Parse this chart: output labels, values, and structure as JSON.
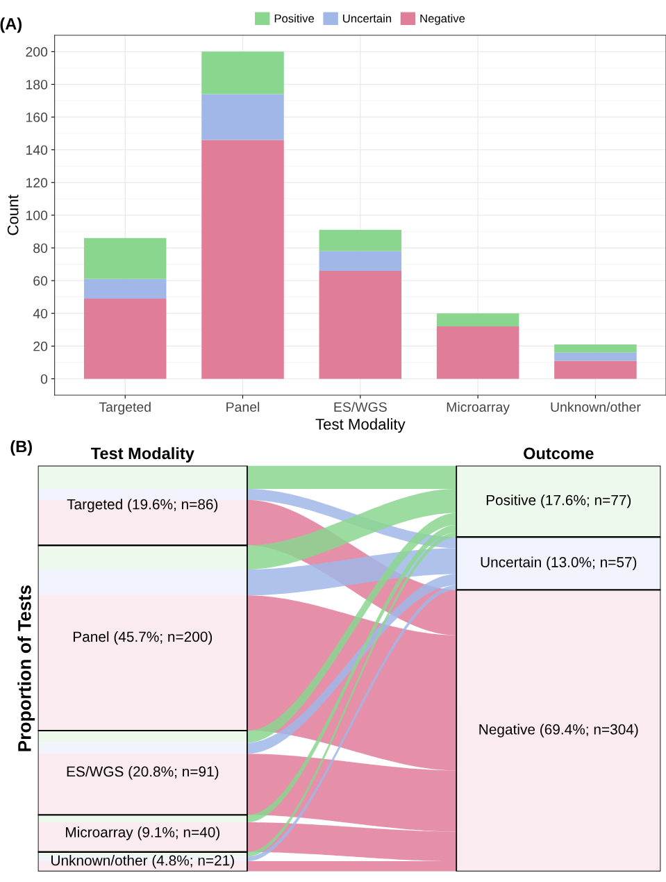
{
  "chart_data": [
    {
      "type": "bar",
      "title": "(A)",
      "xlabel": "Test Modality",
      "ylabel": "Count",
      "stacked": true,
      "grid": true,
      "legend": "top",
      "categories": [
        "Targeted",
        "Panel",
        "ES/WGS",
        "Microarray",
        "Unknown/other"
      ],
      "series": [
        {
          "name": "Negative",
          "color": "#e07d99",
          "values": [
            49,
            146,
            66,
            32,
            11
          ]
        },
        {
          "name": "Uncertain",
          "color": "#a0b7e8",
          "values": [
            12,
            28,
            12,
            0,
            5
          ]
        },
        {
          "name": "Positive",
          "color": "#8bd68f",
          "values": [
            25,
            26,
            13,
            8,
            5
          ]
        }
      ],
      "ylim": [
        -10,
        210
      ],
      "yticks": [
        0,
        20,
        40,
        60,
        80,
        100,
        120,
        140,
        160,
        180,
        200
      ]
    },
    {
      "type": "other",
      "title": "(B)",
      "ylabel": "Proportion of Tests",
      "annotations": [
        "Test Modality",
        "Outcome",
        "Positive (17.6%; n=77)",
        "Uncertain (13.0%; n=57)",
        "Negative (69.4%; n=304)"
      ],
      "categories": [
        "Targeted (19.6%; n=86)",
        "Panel (45.7%; n=200)",
        "ES/WGS (20.8%; n=91)",
        "Microarray (9.1%; n=40)",
        "Unknown/other (4.8%; n=21)"
      ]
    }
  ]
}
